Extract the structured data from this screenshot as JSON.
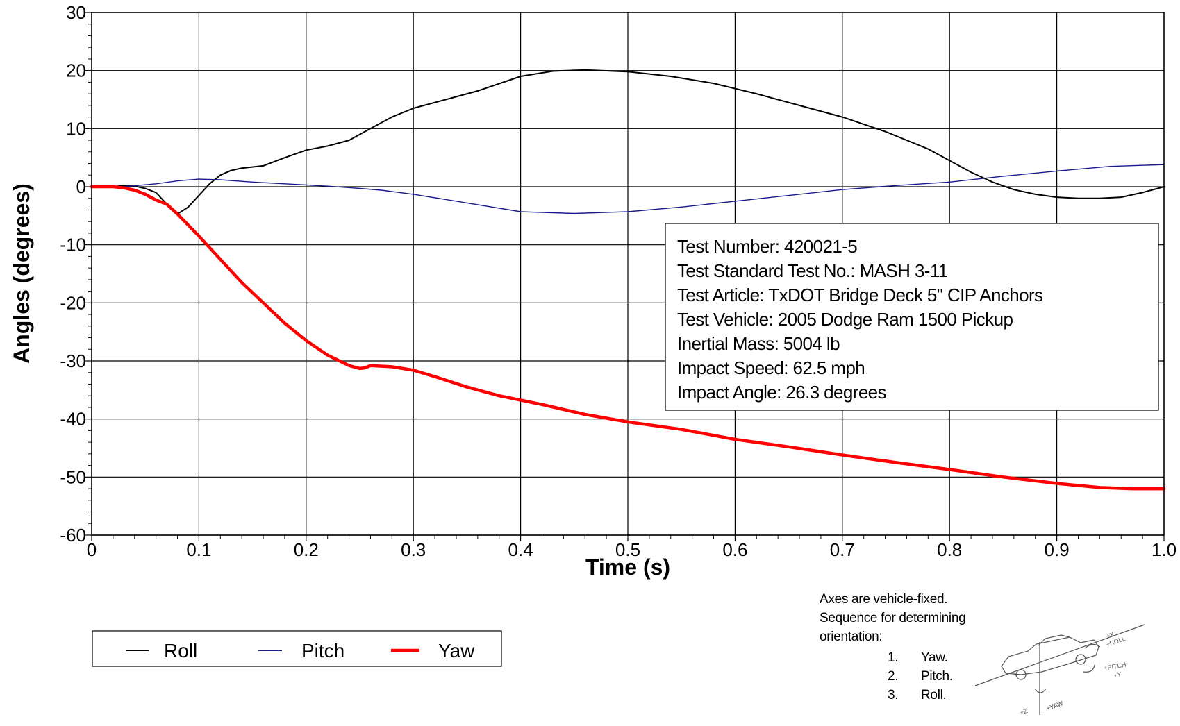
{
  "chart_data": {
    "type": "line",
    "xlabel": "Time (s)",
    "ylabel": "Angles (degrees)",
    "xlim": [
      0,
      1.0
    ],
    "ylim": [
      -60,
      30
    ],
    "x_ticks": [
      0,
      0.1,
      0.2,
      0.3,
      0.4,
      0.5,
      0.6,
      0.7,
      0.8,
      0.9,
      1.0
    ],
    "x_tick_labels": [
      "0",
      "0.1",
      "0.2",
      "0.3",
      "0.4",
      "0.5",
      "0.6",
      "0.7",
      "0.8",
      "0.9",
      "1.0"
    ],
    "y_ticks": [
      30,
      20,
      10,
      0,
      -10,
      -20,
      -30,
      -40,
      -50,
      -60
    ],
    "y_tick_labels": [
      "30",
      "20",
      "10",
      "0",
      "-10",
      "-20",
      "-30",
      "-40",
      "-50",
      "-60"
    ],
    "grid": true,
    "legend_position": "bottom-left",
    "series": [
      {
        "name": "Roll",
        "color": "#000000",
        "x": [
          0,
          0.02,
          0.03,
          0.04,
          0.05,
          0.06,
          0.07,
          0.08,
          0.09,
          0.1,
          0.11,
          0.12,
          0.13,
          0.14,
          0.16,
          0.18,
          0.2,
          0.22,
          0.24,
          0.26,
          0.28,
          0.3,
          0.33,
          0.36,
          0.4,
          0.43,
          0.46,
          0.5,
          0.54,
          0.58,
          0.62,
          0.66,
          0.7,
          0.74,
          0.78,
          0.8,
          0.82,
          0.84,
          0.86,
          0.88,
          0.9,
          0.92,
          0.94,
          0.96,
          0.98,
          1.0
        ],
        "values": [
          0,
          0,
          0.2,
          0.1,
          -0.3,
          -1.0,
          -3.0,
          -4.7,
          -3.5,
          -1.5,
          0.5,
          2.0,
          2.8,
          3.2,
          3.6,
          5.0,
          6.3,
          7.0,
          8.0,
          10.0,
          12.0,
          13.5,
          15.0,
          16.5,
          19.0,
          19.9,
          20.1,
          19.8,
          19.0,
          17.8,
          16.0,
          14.0,
          12.0,
          9.5,
          6.5,
          4.5,
          2.5,
          0.8,
          -0.5,
          -1.3,
          -1.8,
          -2.0,
          -2.0,
          -1.8,
          -1.0,
          0.0
        ]
      },
      {
        "name": "Pitch",
        "color": "#1a1a8c",
        "x": [
          0,
          0.03,
          0.06,
          0.08,
          0.1,
          0.12,
          0.15,
          0.18,
          0.2,
          0.22,
          0.25,
          0.27,
          0.3,
          0.35,
          0.4,
          0.45,
          0.5,
          0.55,
          0.6,
          0.65,
          0.7,
          0.75,
          0.8,
          0.85,
          0.9,
          0.95,
          1.0
        ],
        "values": [
          0,
          0,
          0.5,
          1.0,
          1.3,
          1.2,
          0.8,
          0.5,
          0.3,
          0.1,
          -0.3,
          -0.6,
          -1.3,
          -2.8,
          -4.3,
          -4.6,
          -4.3,
          -3.5,
          -2.5,
          -1.5,
          -0.5,
          0.2,
          0.8,
          1.8,
          2.7,
          3.5,
          3.8
        ]
      },
      {
        "name": "Yaw",
        "color": "#ff0000",
        "x": [
          0,
          0.02,
          0.03,
          0.04,
          0.05,
          0.06,
          0.07,
          0.08,
          0.1,
          0.12,
          0.14,
          0.16,
          0.18,
          0.2,
          0.22,
          0.24,
          0.25,
          0.255,
          0.26,
          0.28,
          0.3,
          0.32,
          0.35,
          0.38,
          0.42,
          0.46,
          0.5,
          0.55,
          0.6,
          0.65,
          0.7,
          0.75,
          0.8,
          0.85,
          0.9,
          0.94,
          0.97,
          1.0
        ],
        "values": [
          0,
          0,
          -0.2,
          -0.6,
          -1.3,
          -2.3,
          -3.0,
          -4.7,
          -8.5,
          -12.5,
          -16.5,
          -20.0,
          -23.5,
          -26.5,
          -29.0,
          -30.8,
          -31.3,
          -31.2,
          -30.8,
          -31.0,
          -31.6,
          -32.7,
          -34.5,
          -36.0,
          -37.5,
          -39.2,
          -40.5,
          -41.8,
          -43.5,
          -44.8,
          -46.2,
          -47.5,
          -48.7,
          -50.0,
          -51.1,
          -51.8,
          -52.0,
          -52.0
        ]
      }
    ]
  },
  "info_box": {
    "lines": [
      "Test Number: 420021-5",
      "Test Standard Test No.: MASH 3-11",
      "Test Article: TxDOT Bridge Deck 5\" CIP Anchors",
      "Test Vehicle: 2005 Dodge Ram 1500 Pickup",
      "Inertial Mass: 5004 lb",
      "Impact Speed: 62.5 mph",
      "Impact Angle: 26.3 degrees"
    ]
  },
  "axes_note": {
    "lines": [
      "Axes are vehicle-fixed.",
      "Sequence for determining",
      "orientation:"
    ],
    "sequence": [
      {
        "num": "1.",
        "label": "Yaw."
      },
      {
        "num": "2.",
        "label": "Pitch."
      },
      {
        "num": "3.",
        "label": "Roll."
      }
    ],
    "vehicle_diagram_labels": [
      "+X",
      "+ROLL",
      "+PITCH",
      "+Y",
      "+Z",
      "+YAW"
    ]
  },
  "legend": {
    "items": [
      {
        "label": "Roll",
        "color": "#000000"
      },
      {
        "label": "Pitch",
        "color": "#1a1a8c"
      },
      {
        "label": "Yaw",
        "color": "#ff0000"
      }
    ]
  }
}
